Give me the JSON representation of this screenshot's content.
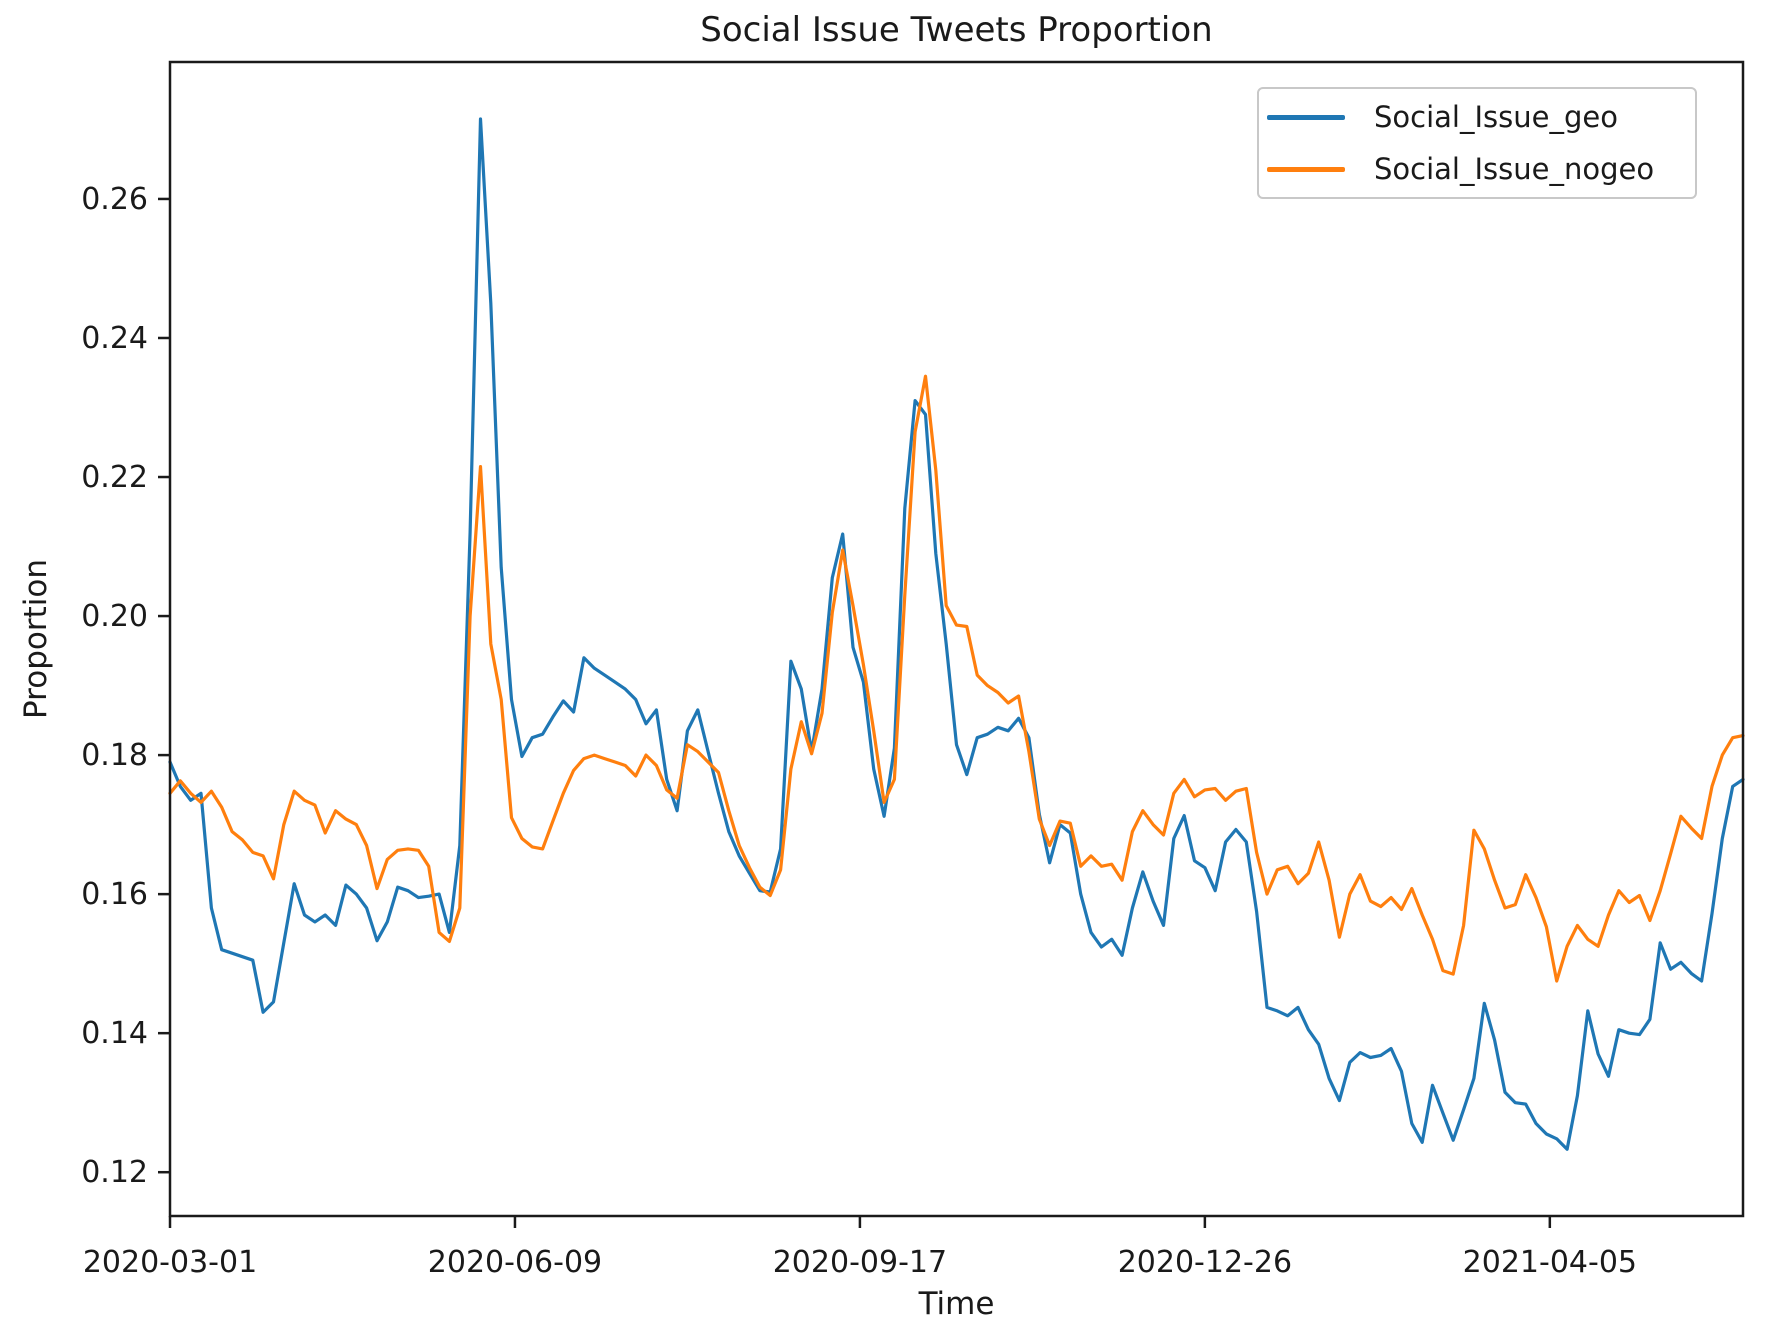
{
  "title": "Social Issue Tweets Proportion",
  "chart_data": {
    "type": "line",
    "title": "Social Issue Tweets Proportion",
    "xlabel": "Time",
    "ylabel": "Proportion",
    "x_unit": "days since 2020-03-01, daily data smoothed",
    "xlim": [
      0,
      456
    ],
    "ylim": [
      0.1137,
      0.2797
    ],
    "step_days": 3,
    "grid": false,
    "legend_position": "upper-right",
    "x_ticks": [
      {
        "day": 0,
        "label": "2020-03-01"
      },
      {
        "day": 100,
        "label": "2020-06-09"
      },
      {
        "day": 200,
        "label": "2020-09-17"
      },
      {
        "day": 300,
        "label": "2020-12-26"
      },
      {
        "day": 400,
        "label": "2021-04-05"
      }
    ],
    "y_ticks": [
      {
        "value": 0.12,
        "label": "0.12"
      },
      {
        "value": 0.14,
        "label": "0.14"
      },
      {
        "value": 0.16,
        "label": "0.16"
      },
      {
        "value": 0.18,
        "label": "0.18"
      },
      {
        "value": 0.2,
        "label": "0.20"
      },
      {
        "value": 0.22,
        "label": "0.22"
      },
      {
        "value": 0.24,
        "label": "0.24"
      },
      {
        "value": 0.26,
        "label": "0.26"
      }
    ],
    "series": [
      {
        "name": "Social_Issue_geo",
        "color": "#1f77b4",
        "values": [
          0.179,
          0.1755,
          0.1735,
          0.1745,
          0.158,
          0.152,
          0.1515,
          0.151,
          0.1505,
          0.143,
          0.1445,
          0.153,
          0.1615,
          0.157,
          0.156,
          0.157,
          0.1555,
          0.1613,
          0.16,
          0.158,
          0.1533,
          0.156,
          0.161,
          0.1605,
          0.1595,
          0.1597,
          0.16,
          0.1545,
          0.167,
          0.212,
          0.2715,
          0.245,
          0.207,
          0.188,
          0.1798,
          0.1825,
          0.183,
          0.1855,
          0.1878,
          0.1862,
          0.194,
          0.1925,
          0.1915,
          0.1905,
          0.1895,
          0.188,
          0.1845,
          0.1865,
          0.1765,
          0.172,
          0.1835,
          0.1865,
          0.1805,
          0.1745,
          0.169,
          0.1655,
          0.163,
          0.1605,
          0.1603,
          0.1665,
          0.1935,
          0.1895,
          0.1805,
          0.1895,
          0.2055,
          0.2118,
          0.1955,
          0.1905,
          0.178,
          0.1712,
          0.181,
          0.2155,
          0.231,
          0.229,
          0.209,
          0.196,
          0.1815,
          0.1772,
          0.1825,
          0.183,
          0.184,
          0.1835,
          0.1853,
          0.1825,
          0.1715,
          0.1645,
          0.17,
          0.1688,
          0.16,
          0.1545,
          0.1524,
          0.1535,
          0.1512,
          0.158,
          0.1632,
          0.159,
          0.1555,
          0.168,
          0.1713,
          0.1648,
          0.1638,
          0.1605,
          0.1675,
          0.1693,
          0.1675,
          0.1575,
          0.1437,
          0.1432,
          0.1425,
          0.1437,
          0.1405,
          0.1384,
          0.1335,
          0.1303,
          0.1358,
          0.1372,
          0.1365,
          0.1368,
          0.1378,
          0.1345,
          0.127,
          0.1243,
          0.1325,
          0.1285,
          0.1246,
          0.129,
          0.1335,
          0.1443,
          0.139,
          0.1315,
          0.13,
          0.1298,
          0.127,
          0.1255,
          0.1248,
          0.1233,
          0.131,
          0.1432,
          0.137,
          0.1338,
          0.1405,
          0.14,
          0.1398,
          0.142,
          0.153,
          0.1492,
          0.1502,
          0.1486,
          0.1475,
          0.1572,
          0.168,
          0.1755,
          0.1765
        ]
      },
      {
        "name": "Social_Issue_nogeo",
        "color": "#ff7f0e",
        "values": [
          0.1745,
          0.1763,
          0.1745,
          0.1732,
          0.1748,
          0.1725,
          0.169,
          0.1678,
          0.166,
          0.1655,
          0.1622,
          0.17,
          0.1748,
          0.1735,
          0.1728,
          0.1688,
          0.172,
          0.1708,
          0.17,
          0.167,
          0.1608,
          0.165,
          0.1663,
          0.1665,
          0.1663,
          0.164,
          0.1545,
          0.1532,
          0.158,
          0.2,
          0.2215,
          0.196,
          0.188,
          0.171,
          0.168,
          0.1668,
          0.1665,
          0.1705,
          0.1745,
          0.1778,
          0.1795,
          0.18,
          0.1795,
          0.179,
          0.1785,
          0.177,
          0.18,
          0.1785,
          0.175,
          0.1738,
          0.1815,
          0.1805,
          0.179,
          0.1775,
          0.172,
          0.167,
          0.1638,
          0.161,
          0.1598,
          0.1635,
          0.178,
          0.1848,
          0.1802,
          0.186,
          0.2005,
          0.2095,
          0.2015,
          0.193,
          0.1835,
          0.1732,
          0.1765,
          0.203,
          0.2265,
          0.2345,
          0.221,
          0.2015,
          0.1987,
          0.1985,
          0.1915,
          0.19,
          0.189,
          0.1875,
          0.1885,
          0.1805,
          0.1708,
          0.167,
          0.1705,
          0.1702,
          0.164,
          0.1655,
          0.164,
          0.1643,
          0.162,
          0.169,
          0.172,
          0.17,
          0.1685,
          0.1745,
          0.1765,
          0.174,
          0.175,
          0.1752,
          0.1735,
          0.1748,
          0.1752,
          0.166,
          0.16,
          0.1635,
          0.164,
          0.1615,
          0.163,
          0.1675,
          0.162,
          0.1538,
          0.16,
          0.1628,
          0.159,
          0.1582,
          0.1595,
          0.1578,
          0.1608,
          0.157,
          0.1535,
          0.149,
          0.1485,
          0.1555,
          0.1692,
          0.1665,
          0.162,
          0.158,
          0.1585,
          0.1628,
          0.1595,
          0.1553,
          0.1475,
          0.1525,
          0.1555,
          0.1535,
          0.1525,
          0.157,
          0.1605,
          0.1588,
          0.1598,
          0.1562,
          0.1605,
          0.1658,
          0.1712,
          0.1695,
          0.168,
          0.1755,
          0.18,
          0.1825,
          0.1828
        ]
      }
    ]
  },
  "colors": {
    "series_geo": "#1f77b4",
    "series_nogeo": "#ff7f0e",
    "axis": "#1a1a1a",
    "legend_border": "#c8c8c8"
  }
}
